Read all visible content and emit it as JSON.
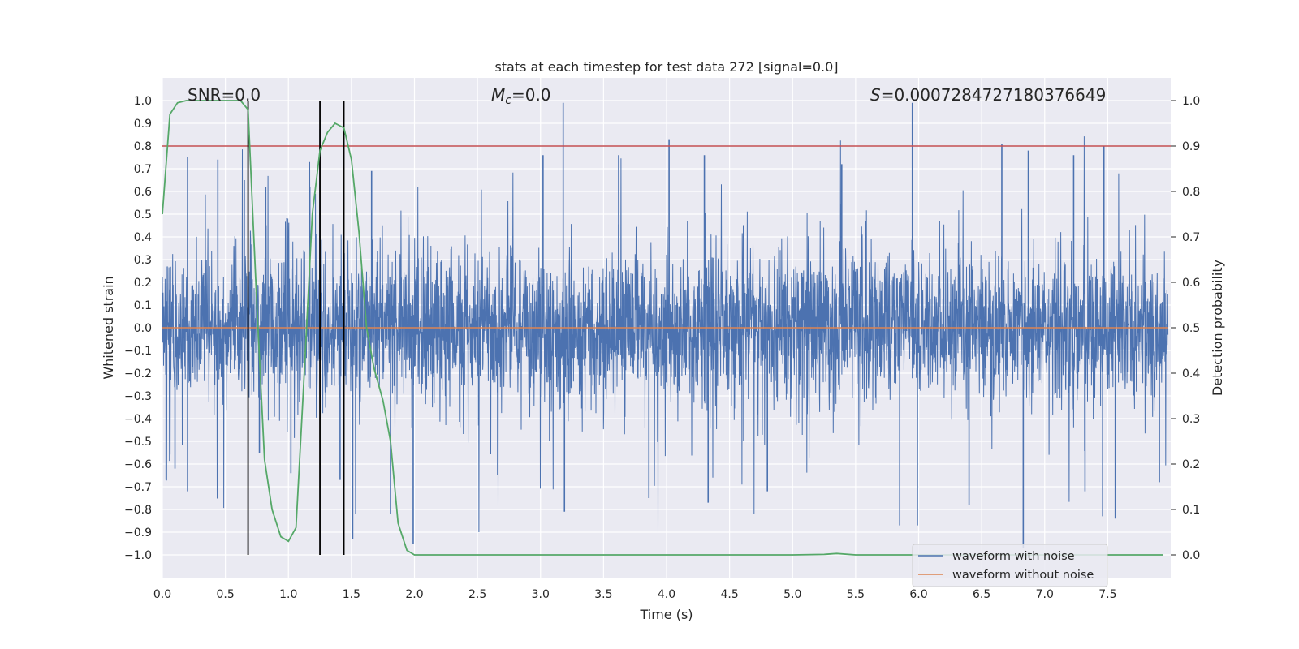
{
  "chart_data": {
    "type": "line",
    "title": "stats at each timestep for test data 272 [signal=0.0]",
    "xlabel": "Time (s)",
    "ylabel": "Whitened strain",
    "ylabel_right": "Detection probability",
    "xlim": [
      0.0,
      8.0
    ],
    "ylim": [
      -1.1,
      1.1
    ],
    "ylim_right": [
      -0.05,
      1.05
    ],
    "xticks": [
      0.0,
      0.5,
      1.0,
      1.5,
      2.0,
      2.5,
      3.0,
      3.5,
      4.0,
      4.5,
      5.0,
      5.5,
      6.0,
      6.5,
      7.0,
      7.5
    ],
    "xtick_labels": [
      "0.0",
      "0.5",
      "1.0",
      "1.5",
      "2.0",
      "2.5",
      "3.0",
      "3.5",
      "4.0",
      "4.5",
      "5.0",
      "5.5",
      "6.0",
      "6.5",
      "7.0",
      "7.5"
    ],
    "yticks": [
      -1.0,
      -0.9,
      -0.8,
      -0.7,
      -0.6,
      -0.5,
      -0.4,
      -0.3,
      -0.2,
      -0.1,
      0.0,
      0.1,
      0.2,
      0.3,
      0.4,
      0.5,
      0.6,
      0.7,
      0.8,
      0.9,
      1.0
    ],
    "ytick_labels": [
      "−1.0",
      "−0.9",
      "−0.8",
      "−0.7",
      "−0.6",
      "−0.5",
      "−0.4",
      "−0.3",
      "−0.2",
      "−0.1",
      "0.0",
      "0.1",
      "0.2",
      "0.3",
      "0.4",
      "0.5",
      "0.6",
      "0.7",
      "0.8",
      "0.9",
      "1.0"
    ],
    "yticks_right": [
      0.0,
      0.1,
      0.2,
      0.3,
      0.4,
      0.5,
      0.6,
      0.7,
      0.8,
      0.9,
      1.0
    ],
    "ytick_labels_right": [
      "0.0",
      "0.1",
      "0.2",
      "0.3",
      "0.4",
      "0.5",
      "0.6",
      "0.7",
      "0.8",
      "0.9",
      "1.0"
    ],
    "annotations": {
      "snr": "SNR=0.0",
      "mc_symbol": "M",
      "mc_sub": "c",
      "mc_value": "=0.0",
      "s_symbol": "S",
      "s_value": "=0.0007284727180376649"
    },
    "threshold": {
      "value": 0.9,
      "axis": "right",
      "color": "#c44e52"
    },
    "vlines": {
      "x": [
        0.68,
        1.25,
        1.44
      ],
      "ymin": -1.0,
      "ymax": 1.0,
      "color": "#000000"
    },
    "series": [
      {
        "name": "waveform with noise",
        "color": "#4c72b0",
        "style": "dense noise",
        "sample_rate": 2048,
        "spikes": [
          {
            "x": 0.03,
            "y": -0.67
          },
          {
            "x": 0.1,
            "y": -0.62
          },
          {
            "x": 0.2,
            "y": 0.75
          },
          {
            "x": 0.2,
            "y": -0.72
          },
          {
            "x": 0.44,
            "y": 0.74
          },
          {
            "x": 0.65,
            "y": 0.65
          },
          {
            "x": 0.77,
            "y": -0.55
          },
          {
            "x": 0.82,
            "y": 0.62
          },
          {
            "x": 1.02,
            "y": -0.64
          },
          {
            "x": 1.17,
            "y": 0.62
          },
          {
            "x": 1.41,
            "y": -0.67
          },
          {
            "x": 1.51,
            "y": -0.93
          },
          {
            "x": 1.66,
            "y": 0.69
          },
          {
            "x": 1.81,
            "y": -0.82
          },
          {
            "x": 1.99,
            "y": -0.95
          },
          {
            "x": 2.66,
            "y": -0.65
          },
          {
            "x": 3.02,
            "y": 0.76
          },
          {
            "x": 3.18,
            "y": 0.99
          },
          {
            "x": 3.19,
            "y": -0.81
          },
          {
            "x": 3.62,
            "y": 0.76
          },
          {
            "x": 3.86,
            "y": -0.75
          },
          {
            "x": 4.02,
            "y": 0.83
          },
          {
            "x": 4.3,
            "y": 0.76
          },
          {
            "x": 4.33,
            "y": -0.77
          },
          {
            "x": 4.8,
            "y": -0.72
          },
          {
            "x": 5.39,
            "y": 0.72
          },
          {
            "x": 5.85,
            "y": -0.87
          },
          {
            "x": 5.95,
            "y": 0.99
          },
          {
            "x": 5.99,
            "y": -0.87
          },
          {
            "x": 6.4,
            "y": -0.78
          },
          {
            "x": 6.66,
            "y": 0.81
          },
          {
            "x": 6.83,
            "y": -0.97
          },
          {
            "x": 6.87,
            "y": 0.78
          },
          {
            "x": 7.23,
            "y": 0.76
          },
          {
            "x": 7.32,
            "y": -0.72
          },
          {
            "x": 7.46,
            "y": -0.83
          },
          {
            "x": 7.47,
            "y": 0.8
          },
          {
            "x": 7.56,
            "y": -0.84
          },
          {
            "x": 7.91,
            "y": -0.68
          }
        ]
      },
      {
        "name": "waveform without noise",
        "color": "#dd8452",
        "x": [
          0.0,
          7.98
        ],
        "y": [
          0.0,
          0.0
        ]
      },
      {
        "name": "detection probability",
        "color": "#55a868",
        "axis": "right",
        "x": [
          0.0,
          0.06,
          0.12,
          0.19,
          0.25,
          0.31,
          0.37,
          0.44,
          0.5,
          0.56,
          0.62,
          0.68,
          0.75,
          0.81,
          0.87,
          0.94,
          1.0,
          1.06,
          1.12,
          1.19,
          1.25,
          1.31,
          1.37,
          1.44,
          1.5,
          1.56,
          1.62,
          1.68,
          1.75,
          1.81,
          1.87,
          1.94,
          2.0,
          2.5,
          3.0,
          3.5,
          4.0,
          4.5,
          5.0,
          5.25,
          5.35,
          5.5,
          6.0,
          6.5,
          7.0,
          7.5,
          7.94
        ],
        "y": [
          0.75,
          0.97,
          0.995,
          1.0,
          1.0,
          1.0,
          1.0,
          1.0,
          1.0,
          1.0,
          1.0,
          0.98,
          0.55,
          0.21,
          0.1,
          0.04,
          0.03,
          0.06,
          0.37,
          0.75,
          0.89,
          0.93,
          0.95,
          0.94,
          0.87,
          0.71,
          0.5,
          0.41,
          0.34,
          0.25,
          0.07,
          0.01,
          0.0,
          0.0,
          0.0,
          0.0,
          0.0,
          0.0,
          0.0,
          0.001,
          0.003,
          0.0,
          0.0,
          0.0,
          0.0,
          0.0,
          0.0
        ]
      }
    ],
    "legend": {
      "location": "lower right",
      "entries": [
        "waveform with noise",
        "waveform without noise"
      ]
    },
    "grid": true,
    "background": "#eaeaf2"
  }
}
